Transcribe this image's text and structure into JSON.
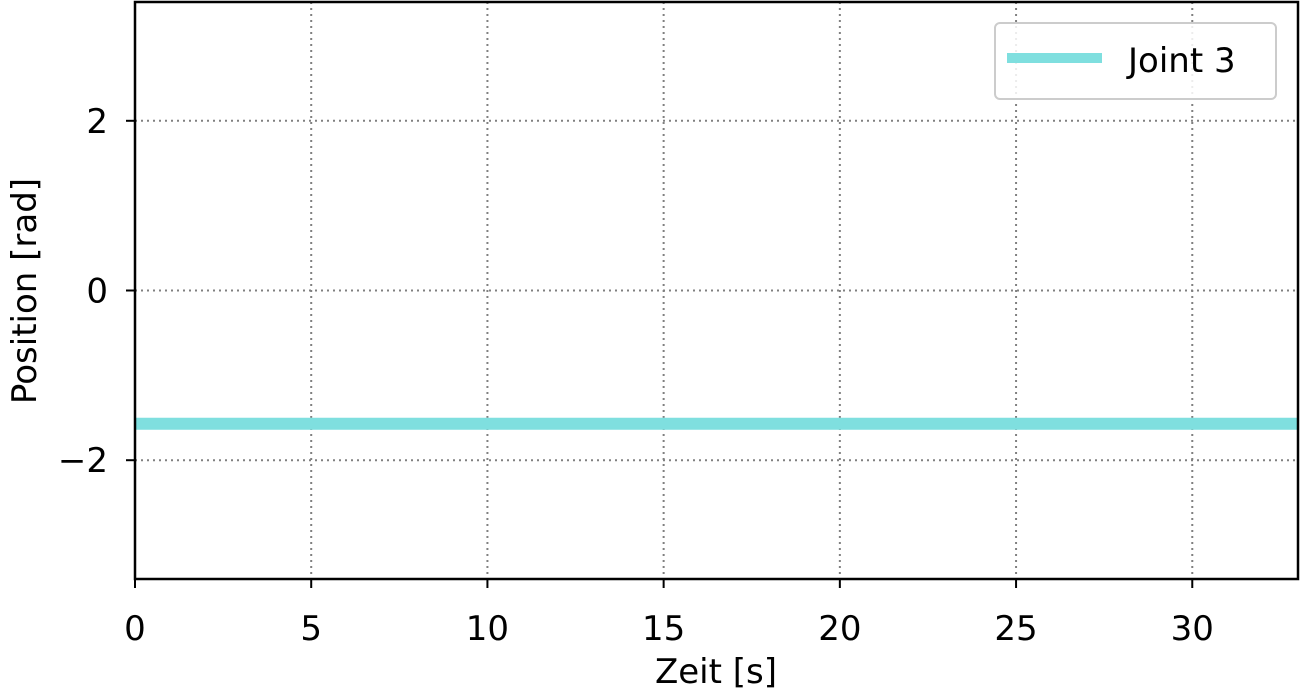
{
  "chart_data": {
    "type": "line",
    "title": "",
    "xlabel": "Zeit [s]",
    "ylabel": "Position [rad]",
    "xlim": [
      0,
      33
    ],
    "ylim": [
      -3.4,
      3.4
    ],
    "xticks": [
      0,
      5,
      10,
      15,
      20,
      25,
      30
    ],
    "yticks": [
      -2,
      0,
      2
    ],
    "xtick_labels": [
      "0",
      "5",
      "10",
      "15",
      "20",
      "25",
      "30"
    ],
    "ytick_labels": [
      "−2",
      "0",
      "2"
    ],
    "grid": true,
    "legend_position": "top-right",
    "series": [
      {
        "name": "Joint 3",
        "color": "#7fdfdf",
        "x": [
          0,
          33
        ],
        "y": [
          -1.57,
          -1.57
        ]
      }
    ]
  }
}
